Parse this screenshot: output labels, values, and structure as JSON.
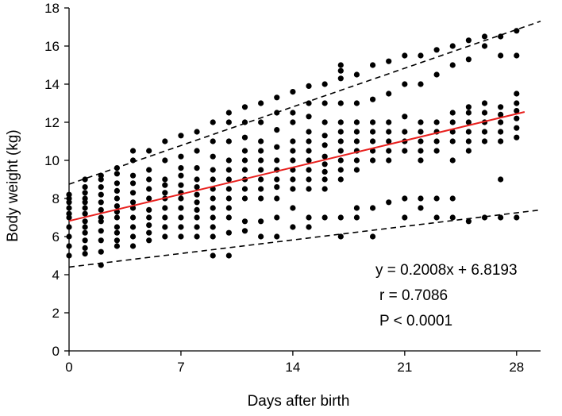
{
  "chart_data": {
    "type": "scatter",
    "xlabel": "Days after birth",
    "ylabel": "Body weight (kg)",
    "xlim": [
      0,
      29.5
    ],
    "ylim": [
      0,
      18
    ],
    "x_ticks": [
      0,
      7,
      14,
      21,
      28
    ],
    "y_ticks": [
      0,
      2,
      4,
      6,
      8,
      10,
      12,
      14,
      16,
      18
    ],
    "grid": false,
    "colors": {
      "points": "#000000",
      "regression": "#e8201e",
      "bounds": "#000000"
    },
    "regression_line": {
      "slope": 0.2008,
      "intercept": 6.8193,
      "x_range": [
        0,
        28.5
      ],
      "style": "solid"
    },
    "upper_bound": {
      "x": [
        0,
        29.5
      ],
      "y": [
        8.75,
        17.3
      ],
      "style": "dashed"
    },
    "lower_bound": {
      "x": [
        0,
        29.5
      ],
      "y": [
        4.4,
        7.4
      ],
      "style": "dashed"
    },
    "annotations": [
      "y = 0.2008x + 6.8193",
      "r = 0.7086",
      "P < 0.0001"
    ],
    "points": [
      [
        0,
        5.0
      ],
      [
        0,
        5.5
      ],
      [
        0,
        6.0
      ],
      [
        0,
        6.5
      ],
      [
        0,
        7.0
      ],
      [
        0,
        7.2
      ],
      [
        0,
        7.5
      ],
      [
        0,
        7.8
      ],
      [
        0,
        8.0
      ],
      [
        0,
        8.2
      ],
      [
        1,
        5.1
      ],
      [
        1,
        5.4
      ],
      [
        1,
        5.8
      ],
      [
        1,
        6.2
      ],
      [
        1,
        6.5
      ],
      [
        1,
        6.8
      ],
      [
        1,
        7.2
      ],
      [
        1,
        7.5
      ],
      [
        1,
        7.8
      ],
      [
        1,
        8.0
      ],
      [
        1,
        8.3
      ],
      [
        1,
        8.6
      ],
      [
        1,
        9.0
      ],
      [
        2,
        4.5
      ],
      [
        2,
        5.2
      ],
      [
        2,
        5.8
      ],
      [
        2,
        6.3
      ],
      [
        2,
        6.8
      ],
      [
        2,
        7.0
      ],
      [
        2,
        7.4
      ],
      [
        2,
        7.8
      ],
      [
        2,
        8.2
      ],
      [
        2,
        8.6
      ],
      [
        2,
        9.0
      ],
      [
        2,
        9.2
      ],
      [
        3,
        5.5
      ],
      [
        3,
        5.8
      ],
      [
        3,
        6.2
      ],
      [
        3,
        6.5
      ],
      [
        3,
        7.0
      ],
      [
        3,
        7.3
      ],
      [
        3,
        7.6
      ],
      [
        3,
        8.0
      ],
      [
        3,
        8.4
      ],
      [
        3,
        8.8
      ],
      [
        3,
        9.3
      ],
      [
        3,
        9.6
      ],
      [
        4,
        5.5
      ],
      [
        4,
        6.0
      ],
      [
        4,
        6.5
      ],
      [
        4,
        7.0
      ],
      [
        4,
        7.5
      ],
      [
        4,
        7.8
      ],
      [
        4,
        8.3
      ],
      [
        4,
        8.8
      ],
      [
        4,
        9.2
      ],
      [
        4,
        10.0
      ],
      [
        4,
        10.5
      ],
      [
        5,
        5.8
      ],
      [
        5,
        6.2
      ],
      [
        5,
        6.6
      ],
      [
        5,
        7.0
      ],
      [
        5,
        7.4
      ],
      [
        5,
        8.0
      ],
      [
        5,
        8.5
      ],
      [
        5,
        9.0
      ],
      [
        5,
        9.5
      ],
      [
        5,
        10.5
      ],
      [
        6,
        6.0
      ],
      [
        6,
        6.5
      ],
      [
        6,
        7.0
      ],
      [
        6,
        7.5
      ],
      [
        6,
        8.0
      ],
      [
        6,
        8.3
      ],
      [
        6,
        8.7
      ],
      [
        6,
        9.0
      ],
      [
        6,
        10.0
      ],
      [
        6,
        11.0
      ],
      [
        7,
        6.0
      ],
      [
        7,
        6.5
      ],
      [
        7,
        7.0
      ],
      [
        7,
        7.5
      ],
      [
        7,
        8.0
      ],
      [
        7,
        8.3
      ],
      [
        7,
        8.7
      ],
      [
        7,
        9.2
      ],
      [
        7,
        9.6
      ],
      [
        7,
        10.2
      ],
      [
        7,
        11.3
      ],
      [
        8,
        6.0
      ],
      [
        8,
        6.5
      ],
      [
        8,
        7.0
      ],
      [
        8,
        7.4
      ],
      [
        8,
        7.8
      ],
      [
        8,
        8.2
      ],
      [
        8,
        8.6
      ],
      [
        8,
        9.0
      ],
      [
        8,
        9.6
      ],
      [
        8,
        10.5
      ],
      [
        8,
        11.5
      ],
      [
        9,
        5.0
      ],
      [
        9,
        6.0
      ],
      [
        9,
        6.5
      ],
      [
        9,
        7.0
      ],
      [
        9,
        7.5
      ],
      [
        9,
        8.0
      ],
      [
        9,
        8.5
      ],
      [
        9,
        9.0
      ],
      [
        9,
        9.5
      ],
      [
        9,
        10.2
      ],
      [
        9,
        11.0
      ],
      [
        9,
        12.0
      ],
      [
        10,
        5.0
      ],
      [
        10,
        6.2
      ],
      [
        10,
        7.0
      ],
      [
        10,
        7.5
      ],
      [
        10,
        8.0
      ],
      [
        10,
        8.5
      ],
      [
        10,
        9.0
      ],
      [
        10,
        9.5
      ],
      [
        10,
        10.0
      ],
      [
        10,
        11.0
      ],
      [
        10,
        12.0
      ],
      [
        10,
        12.5
      ],
      [
        11,
        6.3
      ],
      [
        11,
        6.8
      ],
      [
        11,
        8.0
      ],
      [
        11,
        8.5
      ],
      [
        11,
        9.0
      ],
      [
        11,
        9.5
      ],
      [
        11,
        10.0
      ],
      [
        11,
        10.5
      ],
      [
        11,
        11.2
      ],
      [
        11,
        12.0
      ],
      [
        11,
        12.8
      ],
      [
        12,
        6.0
      ],
      [
        12,
        6.8
      ],
      [
        12,
        8.0
      ],
      [
        12,
        8.5
      ],
      [
        12,
        9.0
      ],
      [
        12,
        9.5
      ],
      [
        12,
        10.0
      ],
      [
        12,
        10.5
      ],
      [
        12,
        11.0
      ],
      [
        12,
        12.0
      ],
      [
        12,
        13.0
      ],
      [
        13,
        6.0
      ],
      [
        13,
        7.0
      ],
      [
        13,
        8.0
      ],
      [
        13,
        8.6
      ],
      [
        13,
        9.0
      ],
      [
        13,
        9.5
      ],
      [
        13,
        10.0
      ],
      [
        13,
        10.7
      ],
      [
        13,
        11.6
      ],
      [
        13,
        12.5
      ],
      [
        13,
        13.3
      ],
      [
        14,
        6.5
      ],
      [
        14,
        7.5
      ],
      [
        14,
        8.5
      ],
      [
        14,
        9.0
      ],
      [
        14,
        9.5
      ],
      [
        14,
        10.0
      ],
      [
        14,
        10.5
      ],
      [
        14,
        11.0
      ],
      [
        14,
        12.0
      ],
      [
        14,
        12.5
      ],
      [
        14,
        13.6
      ],
      [
        15,
        6.5
      ],
      [
        15,
        7.0
      ],
      [
        15,
        8.5
      ],
      [
        15,
        9.0
      ],
      [
        15,
        9.5
      ],
      [
        15,
        10.0
      ],
      [
        15,
        10.5
      ],
      [
        15,
        11.0
      ],
      [
        15,
        11.5
      ],
      [
        15,
        12.3
      ],
      [
        15,
        13.0
      ],
      [
        15,
        13.9
      ],
      [
        16,
        7.0
      ],
      [
        16,
        8.5
      ],
      [
        16,
        9.0
      ],
      [
        16,
        9.4
      ],
      [
        16,
        9.8
      ],
      [
        16,
        10.2
      ],
      [
        16,
        10.8
      ],
      [
        16,
        11.3
      ],
      [
        16,
        12.0
      ],
      [
        16,
        13.0
      ],
      [
        16,
        14.0
      ],
      [
        17,
        6.0
      ],
      [
        17,
        7.0
      ],
      [
        17,
        9.0
      ],
      [
        17,
        9.5
      ],
      [
        17,
        10.0
      ],
      [
        17,
        10.5
      ],
      [
        17,
        11.0
      ],
      [
        17,
        11.5
      ],
      [
        17,
        12.0
      ],
      [
        17,
        13.0
      ],
      [
        17,
        14.3
      ],
      [
        17,
        14.7
      ],
      [
        17,
        15.0
      ],
      [
        18,
        7.0
      ],
      [
        18,
        7.5
      ],
      [
        18,
        9.5
      ],
      [
        18,
        10.0
      ],
      [
        18,
        10.5
      ],
      [
        18,
        11.0
      ],
      [
        18,
        11.5
      ],
      [
        18,
        12.0
      ],
      [
        18,
        13.0
      ],
      [
        18,
        14.5
      ],
      [
        19,
        6.0
      ],
      [
        19,
        7.5
      ],
      [
        19,
        10.0
      ],
      [
        19,
        10.5
      ],
      [
        19,
        11.0
      ],
      [
        19,
        11.5
      ],
      [
        19,
        12.0
      ],
      [
        19,
        13.2
      ],
      [
        19,
        15.0
      ],
      [
        20,
        7.8
      ],
      [
        20,
        10.0
      ],
      [
        20,
        10.5
      ],
      [
        20,
        11.0
      ],
      [
        20,
        11.5
      ],
      [
        20,
        12.0
      ],
      [
        20,
        13.5
      ],
      [
        20,
        15.2
      ],
      [
        21,
        7.0
      ],
      [
        21,
        8.0
      ],
      [
        21,
        10.5
      ],
      [
        21,
        11.0
      ],
      [
        21,
        11.5
      ],
      [
        21,
        12.3
      ],
      [
        21,
        14.0
      ],
      [
        21,
        15.5
      ],
      [
        22,
        7.5
      ],
      [
        22,
        8.0
      ],
      [
        22,
        10.0
      ],
      [
        22,
        10.5
      ],
      [
        22,
        11.0
      ],
      [
        22,
        11.5
      ],
      [
        22,
        12.0
      ],
      [
        22,
        14.0
      ],
      [
        22,
        15.5
      ],
      [
        23,
        7.0
      ],
      [
        23,
        8.0
      ],
      [
        23,
        10.5
      ],
      [
        23,
        11.0
      ],
      [
        23,
        11.5
      ],
      [
        23,
        12.0
      ],
      [
        23,
        14.5
      ],
      [
        23,
        15.8
      ],
      [
        24,
        7.0
      ],
      [
        24,
        8.0
      ],
      [
        24,
        10.0
      ],
      [
        24,
        11.0
      ],
      [
        24,
        11.5
      ],
      [
        24,
        12.0
      ],
      [
        24,
        12.5
      ],
      [
        24,
        15.0
      ],
      [
        24,
        16.0
      ],
      [
        25,
        6.8
      ],
      [
        25,
        10.5
      ],
      [
        25,
        11.0
      ],
      [
        25,
        11.5
      ],
      [
        25,
        12.0
      ],
      [
        25,
        12.5
      ],
      [
        25,
        12.8
      ],
      [
        25,
        15.3
      ],
      [
        25,
        16.3
      ],
      [
        26,
        7.0
      ],
      [
        26,
        11.0
      ],
      [
        26,
        11.5
      ],
      [
        26,
        12.0
      ],
      [
        26,
        12.5
      ],
      [
        26,
        13.0
      ],
      [
        26,
        16.0
      ],
      [
        26,
        16.5
      ],
      [
        27,
        7.0
      ],
      [
        27,
        9.0
      ],
      [
        27,
        11.0
      ],
      [
        27,
        11.5
      ],
      [
        27,
        12.0
      ],
      [
        27,
        12.4
      ],
      [
        27,
        12.8
      ],
      [
        27,
        15.5
      ],
      [
        27,
        16.5
      ],
      [
        28,
        7.0
      ],
      [
        28,
        11.2
      ],
      [
        28,
        11.7
      ],
      [
        28,
        12.2
      ],
      [
        28,
        12.6
      ],
      [
        28,
        13.0
      ],
      [
        28,
        13.5
      ],
      [
        28,
        15.5
      ],
      [
        28,
        16.8
      ]
    ]
  }
}
